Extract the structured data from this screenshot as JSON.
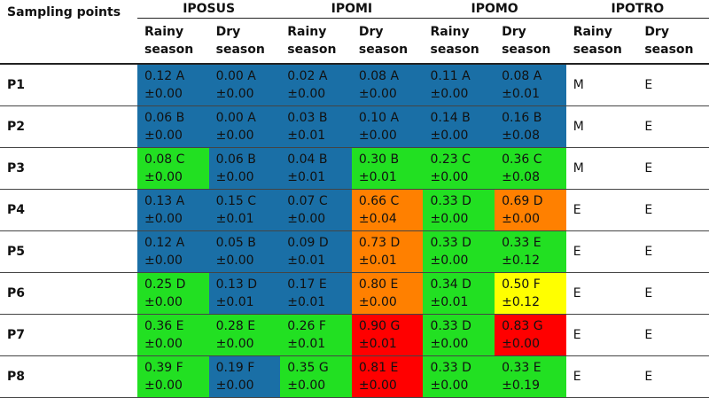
{
  "header": {
    "first": "Sampling points",
    "groups": [
      {
        "name": "IPOSUS",
        "seasons": [
          "Rainy season",
          "Dry season"
        ]
      },
      {
        "name": "IPOMI",
        "seasons": [
          "Rainy season",
          "Dry season"
        ]
      },
      {
        "name": "IPOMO",
        "seasons": [
          "Rainy season",
          "Dry season"
        ]
      },
      {
        "name": "IPOTRO",
        "seasons": [
          "Rainy season",
          "Dry season"
        ]
      }
    ]
  },
  "rows": [
    {
      "label": "P1",
      "cells": [
        {
          "value": "0.12 A",
          "error": "±0.00",
          "color": "#1a6fa6"
        },
        {
          "value": "0.00 A",
          "error": "±0.00",
          "color": "#1a6fa6"
        },
        {
          "value": "0.02 A",
          "error": "±0.00",
          "color": "#1a6fa6"
        },
        {
          "value": "0.08 A",
          "error": "±0.00",
          "color": "#1a6fa6"
        },
        {
          "value": "0.11 A",
          "error": "±0.00",
          "color": "#1a6fa6"
        },
        {
          "value": "0.08 A",
          "error": "±0.01",
          "color": "#1a6fa6"
        },
        {
          "value": "M"
        },
        {
          "value": "E"
        }
      ]
    },
    {
      "label": "P2",
      "cells": [
        {
          "value": "0.06 B",
          "error": "±0.00",
          "color": "#1a6fa6"
        },
        {
          "value": "0.00 A",
          "error": "±0.00",
          "color": "#1a6fa6"
        },
        {
          "value": "0.03 B",
          "error": "±0.01",
          "color": "#1a6fa6"
        },
        {
          "value": "0.10 A",
          "error": "±0.00",
          "color": "#1a6fa6"
        },
        {
          "value": "0.14 B",
          "error": "±0.00",
          "color": "#1a6fa6"
        },
        {
          "value": "0.16 B",
          "error": "±0.08",
          "color": "#1a6fa6"
        },
        {
          "value": "M"
        },
        {
          "value": "E"
        }
      ]
    },
    {
      "label": "P3",
      "cells": [
        {
          "value": "0.08 C",
          "error": "±0.00",
          "color": "#22e022"
        },
        {
          "value": "0.06 B",
          "error": "±0.00",
          "color": "#1a6fa6"
        },
        {
          "value": "0.04 B",
          "error": "±0.01",
          "color": "#1a6fa6"
        },
        {
          "value": "0.30 B",
          "error": "±0.01",
          "color": "#22e022"
        },
        {
          "value": "0.23 C",
          "error": "±0.00",
          "color": "#22e022"
        },
        {
          "value": "0.36 C",
          "error": "±0.08",
          "color": "#22e022"
        },
        {
          "value": "M"
        },
        {
          "value": "E"
        }
      ]
    },
    {
      "label": "P4",
      "cells": [
        {
          "value": "0.13 A",
          "error": "±0.00",
          "color": "#1a6fa6"
        },
        {
          "value": "0.15 C",
          "error": "±0.01",
          "color": "#1a6fa6"
        },
        {
          "value": "0.07 C",
          "error": "±0.00",
          "color": "#1a6fa6"
        },
        {
          "value": "0.66 C",
          "error": "±0.04",
          "color": "#ff8000"
        },
        {
          "value": "0.33 D",
          "error": "±0.00",
          "color": "#22e022"
        },
        {
          "value": "0.69 D",
          "error": "±0.00",
          "color": "#ff8000"
        },
        {
          "value": "E"
        },
        {
          "value": "E"
        }
      ]
    },
    {
      "label": "P5",
      "cells": [
        {
          "value": "0.12 A",
          "error": "±0.00",
          "color": "#1a6fa6"
        },
        {
          "value": "0.05 B",
          "error": "±0.00",
          "color": "#1a6fa6"
        },
        {
          "value": "0.09 D",
          "error": "±0.01",
          "color": "#1a6fa6"
        },
        {
          "value": "0.73 D",
          "error": "±0.01",
          "color": "#ff8000"
        },
        {
          "value": "0.33 D",
          "error": "±0.00",
          "color": "#22e022"
        },
        {
          "value": "0.33 E",
          "error": "±0.12",
          "color": "#22e022"
        },
        {
          "value": "E"
        },
        {
          "value": "E"
        }
      ]
    },
    {
      "label": "P6",
      "cells": [
        {
          "value": "0.25 D",
          "error": "±0.00",
          "color": "#22e022"
        },
        {
          "value": "0.13 D",
          "error": "±0.01",
          "color": "#1a6fa6"
        },
        {
          "value": "0.17 E",
          "error": "±0.01",
          "color": "#1a6fa6"
        },
        {
          "value": "0.80 E",
          "error": "±0.00",
          "color": "#ff8000"
        },
        {
          "value": "0.34 D",
          "error": "±0.01",
          "color": "#22e022"
        },
        {
          "value": "0.50 F",
          "error": "±0.12",
          "color": "#ffff00"
        },
        {
          "value": "E"
        },
        {
          "value": "E"
        }
      ]
    },
    {
      "label": "P7",
      "cells": [
        {
          "value": "0.36 E",
          "error": "±0.00",
          "color": "#22e022"
        },
        {
          "value": "0.28 E",
          "error": "±0.00",
          "color": "#22e022"
        },
        {
          "value": "0.26 F",
          "error": "±0.01",
          "color": "#22e022"
        },
        {
          "value": "0.90 G",
          "error": "±0.01",
          "color": "#ff0000"
        },
        {
          "value": "0.33 D",
          "error": "±0.00",
          "color": "#22e022"
        },
        {
          "value": "0.83 G",
          "error": "±0.00",
          "color": "#ff0000"
        },
        {
          "value": "E"
        },
        {
          "value": "E"
        }
      ]
    },
    {
      "label": "P8",
      "cells": [
        {
          "value": "0.39 F",
          "error": "±0.00",
          "color": "#22e022"
        },
        {
          "value": "0.19 F",
          "error": "±0.00",
          "color": "#1a6fa6"
        },
        {
          "value": "0.35 G",
          "error": "±0.00",
          "color": "#22e022"
        },
        {
          "value": "0.81 E",
          "error": "±0.00",
          "color": "#ff0000"
        },
        {
          "value": "0.33 D",
          "error": "±0.00",
          "color": "#22e022"
        },
        {
          "value": "0.33 E",
          "error": "±0.19",
          "color": "#22e022"
        },
        {
          "value": "E"
        },
        {
          "value": "E"
        }
      ]
    }
  ]
}
